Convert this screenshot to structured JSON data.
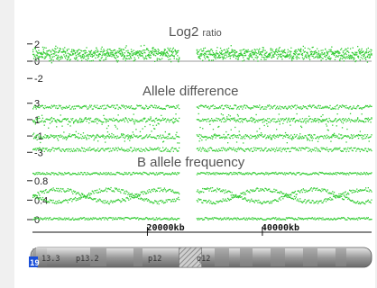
{
  "chart_data": [
    {
      "type": "scatter",
      "title": "Log2",
      "title_suffix": "ratio",
      "y_ticks": [
        "2",
        "0",
        "-2"
      ],
      "ylim": [
        -2.5,
        2.5
      ],
      "color": "#33cc33",
      "baseline": 0
    },
    {
      "type": "scatter",
      "title": "Allele difference",
      "y_ticks": [
        "3",
        "1",
        "-1",
        "-3"
      ],
      "ylim": [
        -3.3,
        3.3
      ],
      "color": "#33cc33"
    },
    {
      "type": "scatter",
      "title": "B allele frequency",
      "y_ticks": [
        "0.8",
        "0.4",
        "0"
      ],
      "ylim": [
        0,
        1
      ],
      "color": "#33cc33"
    }
  ],
  "x_axis": {
    "ticks": [
      "20000kb",
      "40000kb"
    ],
    "tick_values": [
      20000,
      40000
    ],
    "xlim": [
      0,
      59000
    ]
  },
  "ideogram": {
    "chromosome": "19",
    "bands": [
      "13.3",
      "p13.2",
      "p12",
      "q12"
    ]
  }
}
